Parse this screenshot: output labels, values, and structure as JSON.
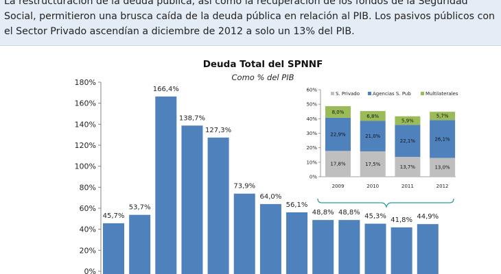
{
  "intro": {
    "text": "La restructuración de la deuda pública, así como la recuperación de los fondos de la Seguridad Social, permitieron una brusca caída de la deuda pública en relación al PIB. Los pasivos públicos con el Sector Privado ascendían a diciembre de 2012 a solo un 13% del PIB."
  },
  "chart_data": [
    {
      "type": "bar",
      "title": "Deuda Total del SPNNF",
      "subtitle": "Como % del PIB",
      "values": [
        45.7,
        53.7,
        166.4,
        138.7,
        127.3,
        73.9,
        64.0,
        56.1,
        48.8,
        48.8,
        45.3,
        41.8,
        44.9
      ],
      "value_labels": [
        "45,7%",
        "53,7%",
        "166,4%",
        "138,7%",
        "127,3%",
        "73,9%",
        "64,0%",
        "56,1%",
        "48,8%",
        "48,8%",
        "45,3%",
        "41,8%",
        "44,9%"
      ],
      "ylim": [
        0,
        180
      ],
      "yticks": [
        "0%",
        "20%",
        "40%",
        "60%",
        "80%",
        "100%",
        "120%",
        "140%",
        "160%",
        "180%"
      ],
      "bar_color": "#4f81bd",
      "grid": false
    },
    {
      "type": "bar",
      "stacked": true,
      "categories": [
        "2009",
        "2010",
        "2011",
        "2012"
      ],
      "series": [
        {
          "name": "S. Privado",
          "color": "#bfbfbf",
          "values": [
            17.8,
            17.5,
            13.7,
            13.0
          ],
          "labels": [
            "17,8%",
            "17,5%",
            "13,7%",
            "13,0%"
          ]
        },
        {
          "name": "Agencias S. Pub",
          "color": "#4f81bd",
          "values": [
            22.9,
            21.0,
            22.1,
            26.1
          ],
          "labels": [
            "22,9%",
            "21,0%",
            "22,1%",
            "26,1%"
          ]
        },
        {
          "name": "Multilaterales",
          "color": "#9bbb59",
          "values": [
            8.0,
            6.8,
            5.9,
            5.7
          ],
          "labels": [
            "8,0%",
            "6,8%",
            "5,9%",
            "5,7%"
          ]
        }
      ],
      "ylim": [
        0,
        60
      ],
      "yticks": [
        "0%",
        "10%",
        "20%",
        "30%",
        "40%",
        "50%",
        "60%"
      ],
      "legend": "top",
      "grid": false
    }
  ]
}
